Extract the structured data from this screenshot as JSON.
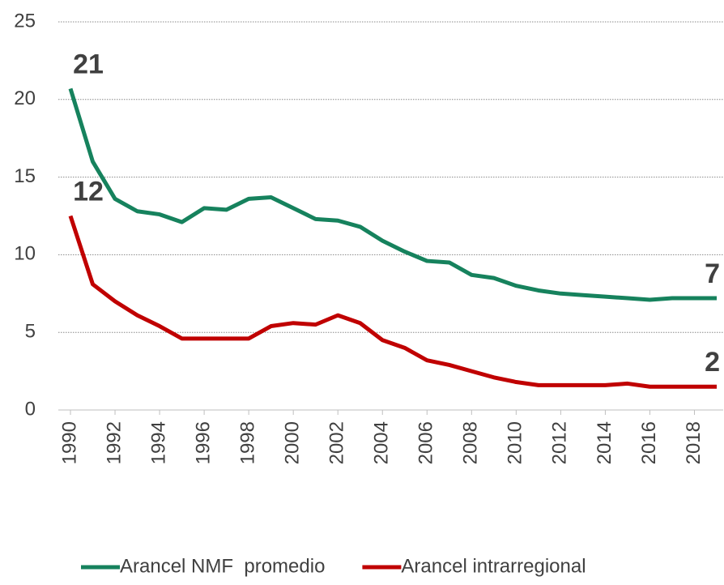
{
  "chart_data": {
    "type": "line",
    "x": [
      1990,
      1991,
      1992,
      1993,
      1994,
      1995,
      1996,
      1997,
      1998,
      1999,
      2000,
      2001,
      2002,
      2003,
      2004,
      2005,
      2006,
      2007,
      2008,
      2009,
      2010,
      2011,
      2012,
      2013,
      2014,
      2015,
      2016,
      2017,
      2018,
      2019
    ],
    "series": [
      {
        "name": "Arancel NMF  promedio",
        "color": "#16825d",
        "values": [
          20.7,
          16.0,
          13.6,
          12.8,
          12.6,
          12.1,
          13.0,
          12.9,
          13.6,
          13.7,
          13.0,
          12.3,
          12.2,
          11.8,
          10.9,
          10.2,
          9.6,
          9.5,
          8.7,
          8.5,
          8.0,
          7.7,
          7.5,
          7.4,
          7.3,
          7.2,
          7.1,
          7.2,
          7.2,
          7.2
        ],
        "value_labels": [
          "21",
          null,
          null,
          null,
          null,
          null,
          null,
          null,
          null,
          null,
          null,
          null,
          null,
          null,
          null,
          null,
          null,
          null,
          null,
          null,
          null,
          null,
          null,
          null,
          null,
          null,
          null,
          null,
          null,
          "7"
        ]
      },
      {
        "name": "Arancel intrarregional",
        "color": "#c00000",
        "values": [
          12.5,
          8.1,
          7.0,
          6.1,
          5.4,
          4.6,
          4.6,
          4.6,
          4.6,
          5.4,
          5.6,
          5.5,
          6.1,
          5.6,
          4.5,
          4.0,
          3.2,
          2.9,
          2.5,
          2.1,
          1.8,
          1.6,
          1.6,
          1.6,
          1.6,
          1.7,
          1.5,
          1.5,
          1.5,
          1.5
        ],
        "value_labels": [
          "12",
          null,
          null,
          null,
          null,
          null,
          null,
          null,
          null,
          null,
          null,
          null,
          null,
          null,
          null,
          null,
          null,
          null,
          null,
          null,
          null,
          null,
          null,
          null,
          null,
          null,
          null,
          null,
          null,
          "2"
        ]
      }
    ],
    "xlim": [
      1990,
      2019
    ],
    "xticks": [
      1990,
      1992,
      1994,
      1996,
      1998,
      2000,
      2002,
      2004,
      2006,
      2008,
      2010,
      2012,
      2014,
      2016,
      2018
    ],
    "ylim": [
      0,
      25
    ],
    "yticks": [
      0,
      5,
      10,
      15,
      20,
      25
    ],
    "grid": true,
    "legend": "bottom"
  }
}
